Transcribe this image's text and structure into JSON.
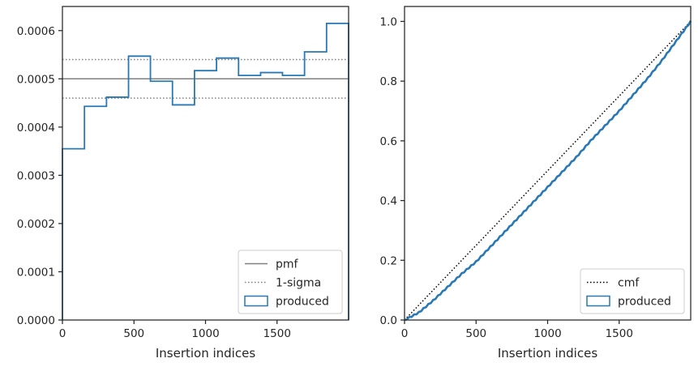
{
  "chart_data": [
    {
      "type": "histogram",
      "xlabel": "Insertion indices",
      "ylabel": "",
      "xlim": [
        0,
        2000
      ],
      "ylim": [
        0,
        0.00065
      ],
      "xticks": [
        0,
        500,
        1000,
        1500
      ],
      "yticks": [
        0,
        0.0001,
        0.0002,
        0.0003,
        0.0004,
        0.0005,
        0.0006
      ],
      "ytick_labels": [
        "0.0000",
        "0.0001",
        "0.0002",
        "0.0003",
        "0.0004",
        "0.0005",
        "0.0006"
      ],
      "bin_edges": [
        0,
        154,
        308,
        462,
        615,
        769,
        923,
        1077,
        1231,
        1385,
        1538,
        1692,
        1846,
        2000
      ],
      "produced_values": [
        0.000355,
        0.000443,
        0.000462,
        0.000547,
        0.000495,
        0.000446,
        0.000517,
        0.000543,
        0.000507,
        0.000513,
        0.000507,
        0.000556,
        0.000615
      ],
      "pmf": 0.0005,
      "sigma_upper": 0.00054,
      "sigma_lower": 0.00046,
      "colors": {
        "produced": "#2878b5",
        "pmf": "#808080",
        "sigma": "#808080"
      },
      "legend": {
        "placement": "lower-right",
        "entries": [
          {
            "label": "pmf",
            "style": "solid-line",
            "color": "#808080"
          },
          {
            "label": "1-sigma",
            "style": "dotted-line",
            "color": "#808080"
          },
          {
            "label": "produced",
            "style": "box",
            "color": "#2878b5"
          }
        ]
      }
    },
    {
      "type": "line",
      "xlabel": "Insertion indices",
      "ylabel": "",
      "xlim": [
        0,
        2000
      ],
      "ylim": [
        0,
        1.05
      ],
      "xticks": [
        0,
        500,
        1000,
        1500
      ],
      "yticks": [
        0,
        0.2,
        0.4,
        0.6,
        0.8,
        1.0
      ],
      "ytick_labels": [
        "0.0",
        "0.2",
        "0.4",
        "0.6",
        "0.8",
        "1.0"
      ],
      "cmf": {
        "x": [
          0,
          2000
        ],
        "y": [
          0,
          1.0
        ],
        "color": "#000000"
      },
      "produced": {
        "x": [
          0,
          100,
          200,
          300,
          400,
          500,
          600,
          700,
          800,
          900,
          1000,
          1100,
          1200,
          1300,
          1400,
          1500,
          1600,
          1700,
          1800,
          1900,
          2000
        ],
        "y": [
          0,
          0.025,
          0.065,
          0.11,
          0.155,
          0.195,
          0.245,
          0.295,
          0.345,
          0.395,
          0.445,
          0.495,
          0.545,
          0.6,
          0.65,
          0.7,
          0.755,
          0.81,
          0.87,
          0.935,
          1.0
        ],
        "color": "#2878b5"
      },
      "legend": {
        "placement": "lower-right",
        "entries": [
          {
            "label": "cmf",
            "style": "dotted-line",
            "color": "#000000"
          },
          {
            "label": "produced",
            "style": "box",
            "color": "#2878b5"
          }
        ]
      }
    }
  ]
}
